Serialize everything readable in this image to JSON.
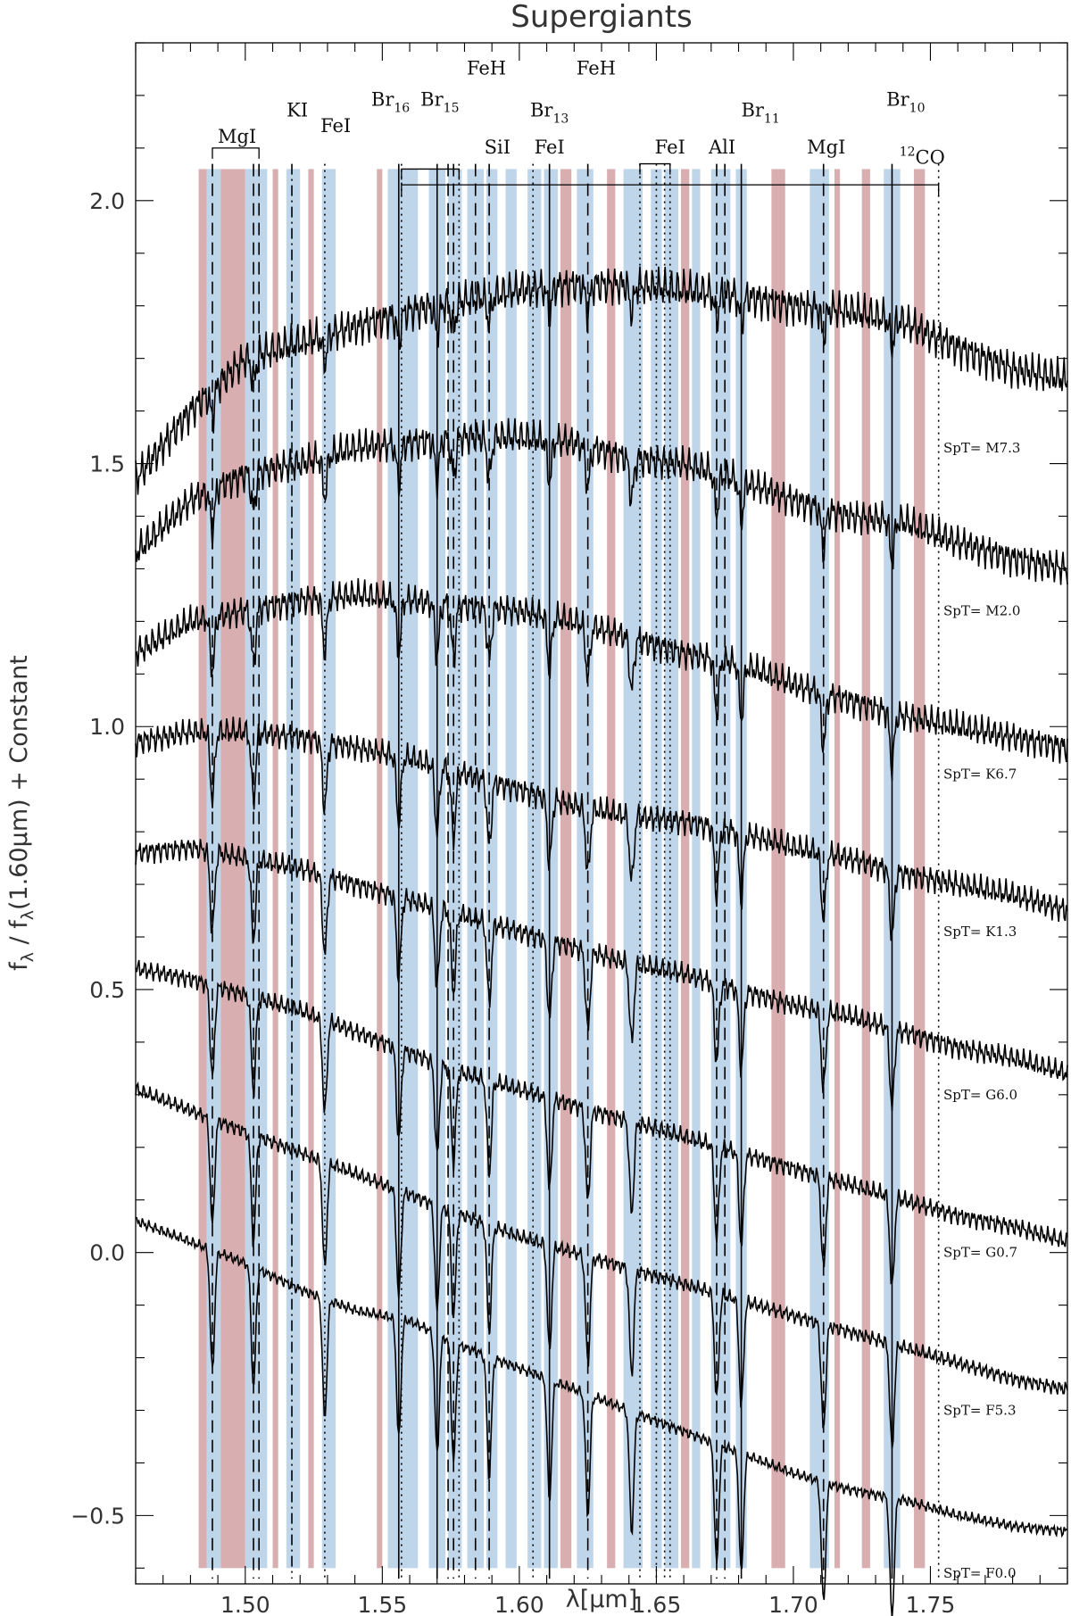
{
  "chart_data": {
    "type": "line",
    "title": "Supergiants",
    "xlabel": "λ[μm]",
    "ylabel": "f_λ / f_λ(1.60μm) + Constant",
    "xlim": [
      1.46,
      1.8
    ],
    "ylim": [
      -0.63,
      2.3
    ],
    "xticks": [
      1.5,
      1.55,
      1.6,
      1.65,
      1.7,
      1.75
    ],
    "xtick_labels": [
      "1.50",
      "1.55",
      "1.60",
      "1.65",
      "1.70",
      "1.75"
    ],
    "yticks": [
      -0.5,
      0.0,
      0.5,
      1.0,
      1.5,
      2.0
    ],
    "ytick_labels": [
      "−0.5",
      "0.0",
      "0.5",
      "1.0",
      "1.5",
      "2.0"
    ],
    "grid": false,
    "series": [
      {
        "name": "SpT= M7.3",
        "label_y": 1.53,
        "points": [
          [
            1.46,
            1.47
          ],
          [
            1.48,
            1.6
          ],
          [
            1.5,
            1.7
          ],
          [
            1.52,
            1.73
          ],
          [
            1.54,
            1.76
          ],
          [
            1.56,
            1.79
          ],
          [
            1.58,
            1.81
          ],
          [
            1.6,
            1.83
          ],
          [
            1.62,
            1.84
          ],
          [
            1.64,
            1.84
          ],
          [
            1.66,
            1.83
          ],
          [
            1.68,
            1.82
          ],
          [
            1.7,
            1.8
          ],
          [
            1.72,
            1.79
          ],
          [
            1.74,
            1.77
          ],
          [
            1.76,
            1.72
          ],
          [
            1.78,
            1.68
          ],
          [
            1.8,
            1.66
          ]
        ]
      },
      {
        "name": "SpT= M2.0",
        "label_y": 1.22,
        "points": [
          [
            1.46,
            1.33
          ],
          [
            1.48,
            1.43
          ],
          [
            1.5,
            1.48
          ],
          [
            1.52,
            1.5
          ],
          [
            1.54,
            1.53
          ],
          [
            1.56,
            1.54
          ],
          [
            1.58,
            1.55
          ],
          [
            1.6,
            1.55
          ],
          [
            1.62,
            1.54
          ],
          [
            1.64,
            1.51
          ],
          [
            1.66,
            1.5
          ],
          [
            1.68,
            1.47
          ],
          [
            1.7,
            1.43
          ],
          [
            1.72,
            1.4
          ],
          [
            1.74,
            1.39
          ],
          [
            1.76,
            1.35
          ],
          [
            1.78,
            1.32
          ],
          [
            1.8,
            1.3
          ]
        ]
      },
      {
        "name": "SpT= K6.7",
        "label_y": 0.91,
        "points": [
          [
            1.46,
            1.14
          ],
          [
            1.48,
            1.2
          ],
          [
            1.5,
            1.22
          ],
          [
            1.52,
            1.24
          ],
          [
            1.54,
            1.25
          ],
          [
            1.56,
            1.24
          ],
          [
            1.58,
            1.23
          ],
          [
            1.6,
            1.22
          ],
          [
            1.62,
            1.2
          ],
          [
            1.64,
            1.17
          ],
          [
            1.66,
            1.14
          ],
          [
            1.68,
            1.12
          ],
          [
            1.7,
            1.08
          ],
          [
            1.72,
            1.05
          ],
          [
            1.74,
            1.02
          ],
          [
            1.76,
            1.0
          ],
          [
            1.78,
            0.98
          ],
          [
            1.8,
            0.96
          ]
        ]
      },
      {
        "name": "SpT= K1.3",
        "label_y": 0.61,
        "points": [
          [
            1.46,
            0.97
          ],
          [
            1.48,
            0.99
          ],
          [
            1.5,
            0.99
          ],
          [
            1.52,
            0.98
          ],
          [
            1.54,
            0.96
          ],
          [
            1.56,
            0.94
          ],
          [
            1.58,
            0.91
          ],
          [
            1.6,
            0.88
          ],
          [
            1.62,
            0.85
          ],
          [
            1.64,
            0.83
          ],
          [
            1.66,
            0.82
          ],
          [
            1.68,
            0.8
          ],
          [
            1.7,
            0.77
          ],
          [
            1.72,
            0.75
          ],
          [
            1.74,
            0.72
          ],
          [
            1.76,
            0.7
          ],
          [
            1.78,
            0.68
          ],
          [
            1.8,
            0.65
          ]
        ]
      },
      {
        "name": "SpT= G6.0",
        "label_y": 0.3,
        "points": [
          [
            1.46,
            0.76
          ],
          [
            1.48,
            0.77
          ],
          [
            1.5,
            0.75
          ],
          [
            1.52,
            0.73
          ],
          [
            1.54,
            0.7
          ],
          [
            1.56,
            0.67
          ],
          [
            1.58,
            0.64
          ],
          [
            1.6,
            0.61
          ],
          [
            1.62,
            0.58
          ],
          [
            1.64,
            0.55
          ],
          [
            1.66,
            0.53
          ],
          [
            1.68,
            0.5
          ],
          [
            1.7,
            0.47
          ],
          [
            1.72,
            0.45
          ],
          [
            1.74,
            0.42
          ],
          [
            1.76,
            0.39
          ],
          [
            1.78,
            0.37
          ],
          [
            1.8,
            0.34
          ]
        ]
      },
      {
        "name": "SpT= G0.7",
        "label_y": 0.0,
        "points": [
          [
            1.46,
            0.54
          ],
          [
            1.48,
            0.52
          ],
          [
            1.5,
            0.49
          ],
          [
            1.52,
            0.46
          ],
          [
            1.54,
            0.42
          ],
          [
            1.56,
            0.38
          ],
          [
            1.58,
            0.34
          ],
          [
            1.6,
            0.31
          ],
          [
            1.62,
            0.28
          ],
          [
            1.64,
            0.25
          ],
          [
            1.66,
            0.22
          ],
          [
            1.68,
            0.19
          ],
          [
            1.7,
            0.16
          ],
          [
            1.72,
            0.13
          ],
          [
            1.74,
            0.1
          ],
          [
            1.76,
            0.07
          ],
          [
            1.78,
            0.05
          ],
          [
            1.8,
            0.02
          ]
        ]
      },
      {
        "name": "SpT= F5.3",
        "label_y": -0.3,
        "points": [
          [
            1.46,
            0.31
          ],
          [
            1.48,
            0.27
          ],
          [
            1.5,
            0.23
          ],
          [
            1.52,
            0.19
          ],
          [
            1.54,
            0.15
          ],
          [
            1.56,
            0.11
          ],
          [
            1.58,
            0.07
          ],
          [
            1.6,
            0.03
          ],
          [
            1.62,
            0.0
          ],
          [
            1.64,
            -0.03
          ],
          [
            1.66,
            -0.06
          ],
          [
            1.68,
            -0.09
          ],
          [
            1.7,
            -0.12
          ],
          [
            1.72,
            -0.15
          ],
          [
            1.74,
            -0.18
          ],
          [
            1.76,
            -0.21
          ],
          [
            1.78,
            -0.24
          ],
          [
            1.8,
            -0.26
          ]
        ]
      },
      {
        "name": "SpT= F0.0",
        "label_y": -0.61,
        "points": [
          [
            1.46,
            0.06
          ],
          [
            1.48,
            0.02
          ],
          [
            1.5,
            -0.02
          ],
          [
            1.52,
            -0.07
          ],
          [
            1.54,
            -0.11
          ],
          [
            1.56,
            -0.13
          ],
          [
            1.58,
            -0.18
          ],
          [
            1.6,
            -0.22
          ],
          [
            1.62,
            -0.26
          ],
          [
            1.64,
            -0.3
          ],
          [
            1.66,
            -0.34
          ],
          [
            1.68,
            -0.38
          ],
          [
            1.7,
            -0.42
          ],
          [
            1.72,
            -0.45
          ],
          [
            1.74,
            -0.47
          ],
          [
            1.76,
            -0.5
          ],
          [
            1.78,
            -0.52
          ],
          [
            1.8,
            -0.53
          ]
        ]
      }
    ],
    "absorption_lines": [
      {
        "x": 1.488,
        "style": "dashed"
      },
      {
        "x": 1.503,
        "style": "dashed"
      },
      {
        "x": 1.505,
        "style": "dashed"
      },
      {
        "x": 1.517,
        "style": "dashdot"
      },
      {
        "x": 1.529,
        "style": "dotted"
      },
      {
        "x": 1.556,
        "style": "solid"
      },
      {
        "x": 1.557,
        "style": "dotted"
      },
      {
        "x": 1.57,
        "style": "solid"
      },
      {
        "x": 1.574,
        "style": "dashed"
      },
      {
        "x": 1.576,
        "style": "dashed"
      },
      {
        "x": 1.578,
        "style": "dotted"
      },
      {
        "x": 1.584,
        "style": "dashed"
      },
      {
        "x": 1.589,
        "style": "dashed"
      },
      {
        "x": 1.605,
        "style": "dotted"
      },
      {
        "x": 1.611,
        "style": "solid"
      },
      {
        "x": 1.625,
        "style": "dashed"
      },
      {
        "x": 1.644,
        "style": "dotted"
      },
      {
        "x": 1.65,
        "style": "dotted"
      },
      {
        "x": 1.653,
        "style": "dotted"
      },
      {
        "x": 1.655,
        "style": "dotted"
      },
      {
        "x": 1.672,
        "style": "dashed"
      },
      {
        "x": 1.675,
        "style": "dashed"
      },
      {
        "x": 1.681,
        "style": "solid"
      },
      {
        "x": 1.711,
        "style": "dashed"
      },
      {
        "x": 1.736,
        "style": "solid"
      },
      {
        "x": 1.753,
        "style": "dotted"
      }
    ],
    "annotations": [
      {
        "text": "MgI",
        "x": 1.497,
        "y": 2.11
      },
      {
        "text": "KI",
        "x": 1.519,
        "y": 2.16
      },
      {
        "text": "FeI",
        "x": 1.533,
        "y": 2.13
      },
      {
        "text": "Br",
        "sub": "16",
        "x": 1.553,
        "y": 2.18
      },
      {
        "text": "Br",
        "sub": "15",
        "x": 1.571,
        "y": 2.18
      },
      {
        "text": "FeH",
        "x": 1.588,
        "y": 2.24
      },
      {
        "text": "SiI",
        "x": 1.592,
        "y": 2.09
      },
      {
        "text": "FeI",
        "x": 1.611,
        "y": 2.09
      },
      {
        "text": "Br",
        "sub": "13",
        "x": 1.611,
        "y": 2.16
      },
      {
        "text": "FeH",
        "x": 1.628,
        "y": 2.24
      },
      {
        "text": "FeI",
        "x": 1.655,
        "y": 2.09
      },
      {
        "text": "AlI",
        "x": 1.674,
        "y": 2.09
      },
      {
        "text": "Br",
        "sub": "11",
        "x": 1.688,
        "y": 2.16
      },
      {
        "text": "MgI",
        "x": 1.712,
        "y": 2.09
      },
      {
        "text": "Br",
        "sub": "10",
        "x": 1.741,
        "y": 2.18
      },
      {
        "text": "CO",
        "sup": "12",
        "x": 1.747,
        "y": 2.07
      }
    ],
    "bands": [
      {
        "x0": 1.483,
        "x1": 1.486,
        "color": "#d9aeb1"
      },
      {
        "x0": 1.486,
        "x1": 1.491,
        "color": "#bfd5ea"
      },
      {
        "x0": 1.491,
        "x1": 1.5,
        "color": "#d9aeb1"
      },
      {
        "x0": 1.5,
        "x1": 1.508,
        "color": "#bfd5ea"
      },
      {
        "x0": 1.51,
        "x1": 1.512,
        "color": "#d9aeb1"
      },
      {
        "x0": 1.515,
        "x1": 1.52,
        "color": "#bfd5ea"
      },
      {
        "x0": 1.523,
        "x1": 1.525,
        "color": "#d9aeb1"
      },
      {
        "x0": 1.528,
        "x1": 1.533,
        "color": "#bfd5ea"
      },
      {
        "x0": 1.548,
        "x1": 1.55,
        "color": "#d9aeb1"
      },
      {
        "x0": 1.552,
        "x1": 1.563,
        "color": "#bfd5ea"
      },
      {
        "x0": 1.567,
        "x1": 1.573,
        "color": "#bfd5ea"
      },
      {
        "x0": 1.574,
        "x1": 1.579,
        "color": "#bfd5ea"
      },
      {
        "x0": 1.581,
        "x1": 1.587,
        "color": "#bfd5ea"
      },
      {
        "x0": 1.588,
        "x1": 1.592,
        "color": "#bfd5ea"
      },
      {
        "x0": 1.595,
        "x1": 1.599,
        "color": "#bfd5ea"
      },
      {
        "x0": 1.603,
        "x1": 1.608,
        "color": "#bfd5ea"
      },
      {
        "x0": 1.609,
        "x1": 1.614,
        "color": "#bfd5ea"
      },
      {
        "x0": 1.615,
        "x1": 1.619,
        "color": "#d9aeb1"
      },
      {
        "x0": 1.621,
        "x1": 1.627,
        "color": "#bfd5ea"
      },
      {
        "x0": 1.632,
        "x1": 1.635,
        "color": "#d9aeb1"
      },
      {
        "x0": 1.638,
        "x1": 1.645,
        "color": "#bfd5ea"
      },
      {
        "x0": 1.648,
        "x1": 1.652,
        "color": "#bfd5ea"
      },
      {
        "x0": 1.653,
        "x1": 1.658,
        "color": "#bfd5ea"
      },
      {
        "x0": 1.659,
        "x1": 1.662,
        "color": "#d9aeb1"
      },
      {
        "x0": 1.663,
        "x1": 1.666,
        "color": "#bfd5ea"
      },
      {
        "x0": 1.67,
        "x1": 1.677,
        "color": "#bfd5ea"
      },
      {
        "x0": 1.679,
        "x1": 1.683,
        "color": "#bfd5ea"
      },
      {
        "x0": 1.692,
        "x1": 1.697,
        "color": "#d9aeb1"
      },
      {
        "x0": 1.706,
        "x1": 1.713,
        "color": "#bfd5ea"
      },
      {
        "x0": 1.715,
        "x1": 1.717,
        "color": "#d9aeb1"
      },
      {
        "x0": 1.725,
        "x1": 1.728,
        "color": "#d9aeb1"
      },
      {
        "x0": 1.733,
        "x1": 1.739,
        "color": "#bfd5ea"
      },
      {
        "x0": 1.744,
        "x1": 1.748,
        "color": "#d9aeb1"
      }
    ]
  }
}
